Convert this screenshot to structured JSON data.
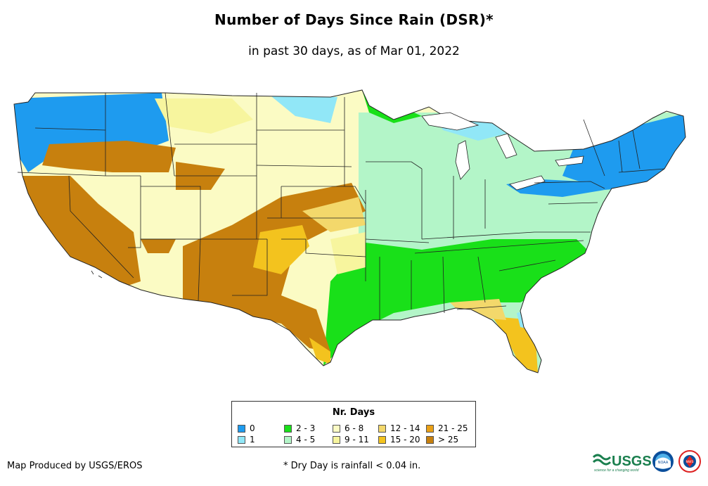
{
  "title": "Number of Days Since Rain (DSR)*",
  "subtitle": "in past 30 days, as of Mar 01, 2022",
  "legend": {
    "title": "Nr. Days",
    "items": [
      {
        "label": "0",
        "color": "#1e9bef"
      },
      {
        "label": "1",
        "color": "#91e7f7"
      },
      {
        "label": "2 - 3",
        "color": "#19e019"
      },
      {
        "label": "4 - 5",
        "color": "#b3f5c8"
      },
      {
        "label": "6 - 8",
        "color": "#fbfbc4"
      },
      {
        "label": "9 - 11",
        "color": "#f7f59e"
      },
      {
        "label": "12 - 14",
        "color": "#f3d86b"
      },
      {
        "label": "15 - 20",
        "color": "#f3c31e"
      },
      {
        "label": "21 - 25",
        "color": "#eaa016"
      },
      {
        "label": "> 25",
        "color": "#c7800e"
      }
    ]
  },
  "footer": {
    "credit": "Map Produced by USGS/EROS",
    "note": "* Dry Day is rainfall < 0.04 in."
  },
  "logos": {
    "usgs": "USGS",
    "usgs_tagline": "science for a changing world",
    "noaa": "NOAA",
    "nws": "NWS"
  }
}
